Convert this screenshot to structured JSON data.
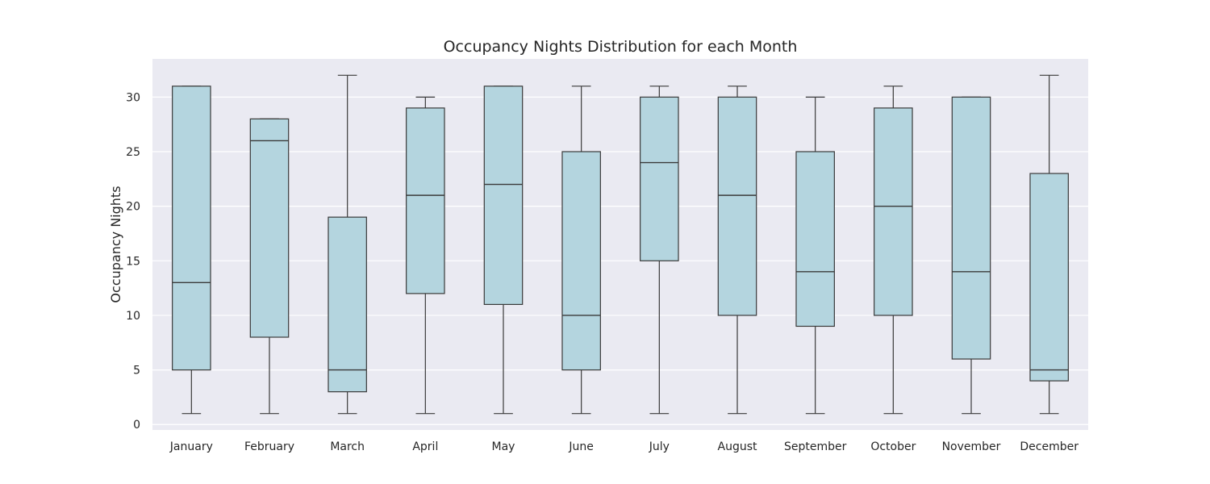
{
  "chart_data": {
    "type": "box",
    "title": "Occupancy Nights Distribution for each Month",
    "xlabel": "",
    "ylabel": "Occupancy Nights",
    "ylim": [
      -0.5,
      33.5
    ],
    "yticks": [
      0,
      5,
      10,
      15,
      20,
      25,
      30
    ],
    "grid": true,
    "box_color": "#b4d5df",
    "line_color": "#3a3a3a",
    "background_color": "#eaeaf2",
    "categories": [
      "January",
      "February",
      "March",
      "April",
      "May",
      "June",
      "July",
      "August",
      "September",
      "October",
      "November",
      "December"
    ],
    "boxes": [
      {
        "whisker_low": 1,
        "q1": 5,
        "median": 13,
        "q3": 31,
        "whisker_high": 31
      },
      {
        "whisker_low": 1,
        "q1": 8,
        "median": 26,
        "q3": 28,
        "whisker_high": 28
      },
      {
        "whisker_low": 1,
        "q1": 3,
        "median": 5,
        "q3": 19,
        "whisker_high": 32
      },
      {
        "whisker_low": 1,
        "q1": 12,
        "median": 21,
        "q3": 29,
        "whisker_high": 30
      },
      {
        "whisker_low": 1,
        "q1": 11,
        "median": 22,
        "q3": 31,
        "whisker_high": 31
      },
      {
        "whisker_low": 1,
        "q1": 5,
        "median": 10,
        "q3": 25,
        "whisker_high": 31
      },
      {
        "whisker_low": 1,
        "q1": 15,
        "median": 24,
        "q3": 30,
        "whisker_high": 31
      },
      {
        "whisker_low": 1,
        "q1": 10,
        "median": 21,
        "q3": 30,
        "whisker_high": 31
      },
      {
        "whisker_low": 1,
        "q1": 9,
        "median": 14,
        "q3": 25,
        "whisker_high": 30
      },
      {
        "whisker_low": 1,
        "q1": 10,
        "median": 20,
        "q3": 29,
        "whisker_high": 31
      },
      {
        "whisker_low": 1,
        "q1": 6,
        "median": 14,
        "q3": 30,
        "whisker_high": 30
      },
      {
        "whisker_low": 1,
        "q1": 4,
        "median": 5,
        "q3": 23,
        "whisker_high": 32
      }
    ]
  }
}
